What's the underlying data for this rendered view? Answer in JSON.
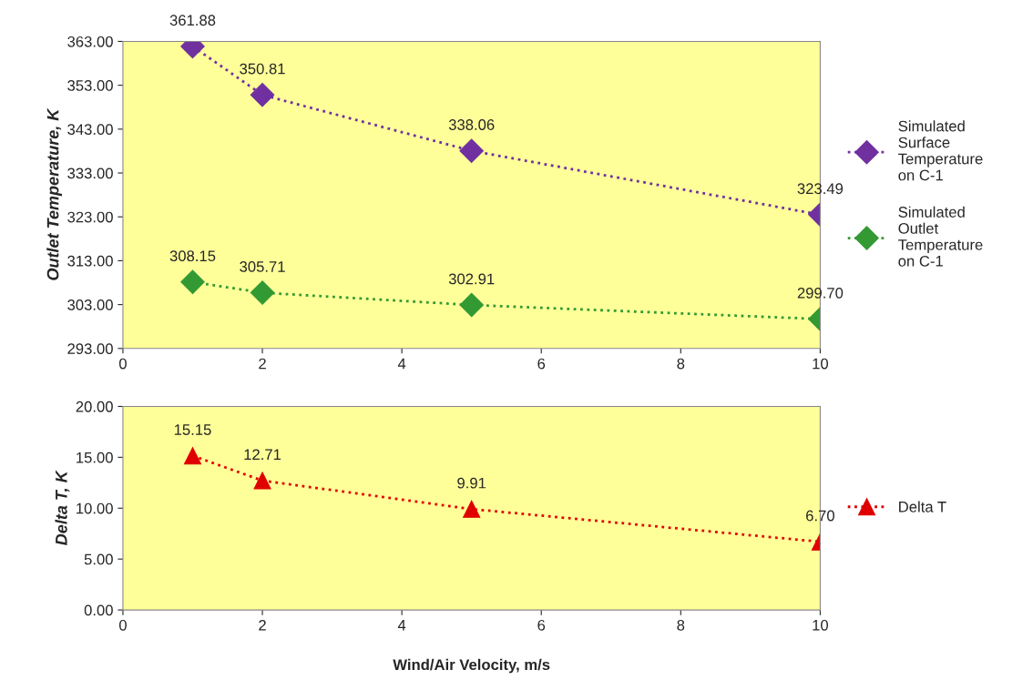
{
  "chart_data": [
    {
      "type": "line",
      "ylabel": "Outlet Temperature, K",
      "x": [
        1,
        2,
        5,
        10
      ],
      "xlim": [
        0,
        10
      ],
      "xticks": [
        0,
        2,
        4,
        6,
        8,
        10
      ],
      "ylim": [
        293,
        363
      ],
      "yticks": [
        {
          "value": 293,
          "label": "293.00"
        },
        {
          "value": 303,
          "label": "303.00"
        },
        {
          "value": 313,
          "label": "313.00"
        },
        {
          "value": 323,
          "label": "323.00"
        },
        {
          "value": 333,
          "label": "333.00"
        },
        {
          "value": 343,
          "label": "343.00"
        },
        {
          "value": 353,
          "label": "353.00"
        },
        {
          "value": 363,
          "label": "363.00"
        }
      ],
      "series": [
        {
          "name": "Simulated Surface Temperature on C-1",
          "color": "#7030a0",
          "values": [
            361.88,
            350.81,
            338.06,
            323.49
          ],
          "value_labels": [
            "361.88",
            "350.81",
            "338.06",
            "323.49"
          ]
        },
        {
          "name": "Simulated Outlet Temperature on C-1",
          "color": "#339933",
          "values": [
            308.15,
            305.71,
            302.91,
            299.7
          ],
          "value_labels": [
            "308.15",
            "305.71",
            "302.91",
            "299.70"
          ]
        }
      ],
      "marker": "diamond",
      "line_style": "dotted",
      "legend": "right",
      "grid": false
    },
    {
      "type": "line",
      "ylabel": "Delta T, K",
      "xlabel": "Wind/Air Velocity, m/s",
      "x": [
        1,
        2,
        5,
        10
      ],
      "xlim": [
        0,
        10
      ],
      "xticks": [
        0,
        2,
        4,
        6,
        8,
        10
      ],
      "ylim": [
        0,
        20
      ],
      "yticks": [
        {
          "value": 0,
          "label": "0.00"
        },
        {
          "value": 5,
          "label": "5.00"
        },
        {
          "value": 10,
          "label": "10.00"
        },
        {
          "value": 15,
          "label": "15.00"
        },
        {
          "value": 20,
          "label": "20.00"
        }
      ],
      "series": [
        {
          "name": "Delta T",
          "color": "#e00000",
          "values": [
            15.15,
            12.71,
            9.91,
            6.7
          ],
          "value_labels": [
            "15.15",
            "12.71",
            "9.91",
            "6.70"
          ]
        }
      ],
      "marker": "triangle",
      "line_style": "dotted",
      "legend": "right",
      "grid": false
    }
  ]
}
